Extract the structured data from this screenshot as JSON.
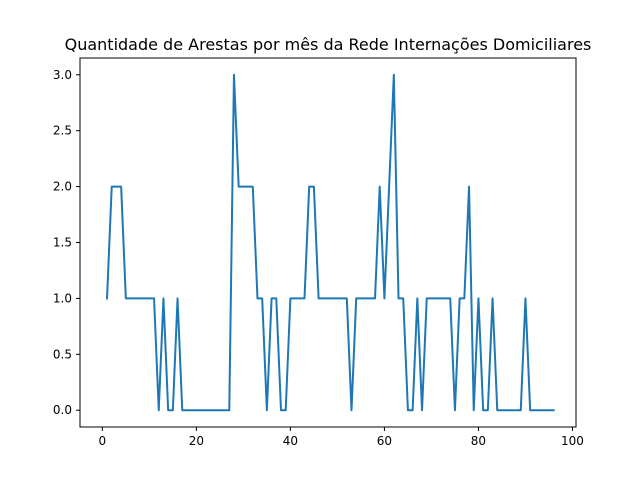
{
  "chart_data": {
    "type": "line",
    "title": "Quantidade de Arestas por mês da Rede Internações Domiciliares",
    "xlabel": "",
    "ylabel": "",
    "xlim": [
      -4.75,
      100.75
    ],
    "ylim": [
      -0.15,
      3.15
    ],
    "x_ticks": [
      0,
      20,
      40,
      60,
      80,
      100
    ],
    "x_tick_labels": [
      "0",
      "20",
      "40",
      "60",
      "80",
      "100"
    ],
    "y_ticks": [
      0.0,
      0.5,
      1.0,
      1.5,
      2.0,
      2.5,
      3.0
    ],
    "y_tick_labels": [
      "0.0",
      "0.5",
      "1.0",
      "1.5",
      "2.0",
      "2.5",
      "3.0"
    ],
    "grid": false,
    "series": [
      {
        "color": "#1f77b4",
        "x": [
          1,
          2,
          3,
          4,
          5,
          6,
          7,
          8,
          9,
          10,
          11,
          12,
          13,
          14,
          15,
          16,
          17,
          18,
          19,
          20,
          21,
          22,
          23,
          24,
          25,
          26,
          27,
          28,
          29,
          30,
          31,
          32,
          33,
          34,
          35,
          36,
          37,
          38,
          39,
          40,
          41,
          42,
          43,
          44,
          45,
          46,
          47,
          48,
          49,
          50,
          51,
          52,
          53,
          54,
          55,
          56,
          57,
          58,
          59,
          60,
          61,
          62,
          63,
          64,
          65,
          66,
          67,
          68,
          69,
          70,
          71,
          72,
          73,
          74,
          75,
          76,
          77,
          78,
          79,
          80,
          81,
          82,
          83,
          84,
          85,
          86,
          87,
          88,
          89,
          90,
          91,
          92,
          93,
          94,
          95,
          96
        ],
        "y": [
          1,
          2,
          2,
          2,
          1,
          1,
          1,
          1,
          1,
          1,
          1,
          0,
          1,
          0,
          0,
          1,
          0,
          0,
          0,
          0,
          0,
          0,
          0,
          0,
          0,
          0,
          0,
          3,
          2,
          2,
          2,
          2,
          1,
          1,
          0,
          1,
          1,
          0,
          0,
          1,
          1,
          1,
          1,
          2,
          2,
          1,
          1,
          1,
          1,
          1,
          1,
          1,
          0,
          1,
          1,
          1,
          1,
          1,
          2,
          1,
          2,
          3,
          1,
          1,
          0,
          0,
          1,
          0,
          1,
          1,
          1,
          1,
          1,
          1,
          0,
          1,
          1,
          2,
          0,
          1,
          0,
          0,
          1,
          0,
          0,
          0,
          0,
          0,
          0,
          1,
          0,
          0,
          0,
          0,
          0,
          0
        ]
      }
    ]
  }
}
